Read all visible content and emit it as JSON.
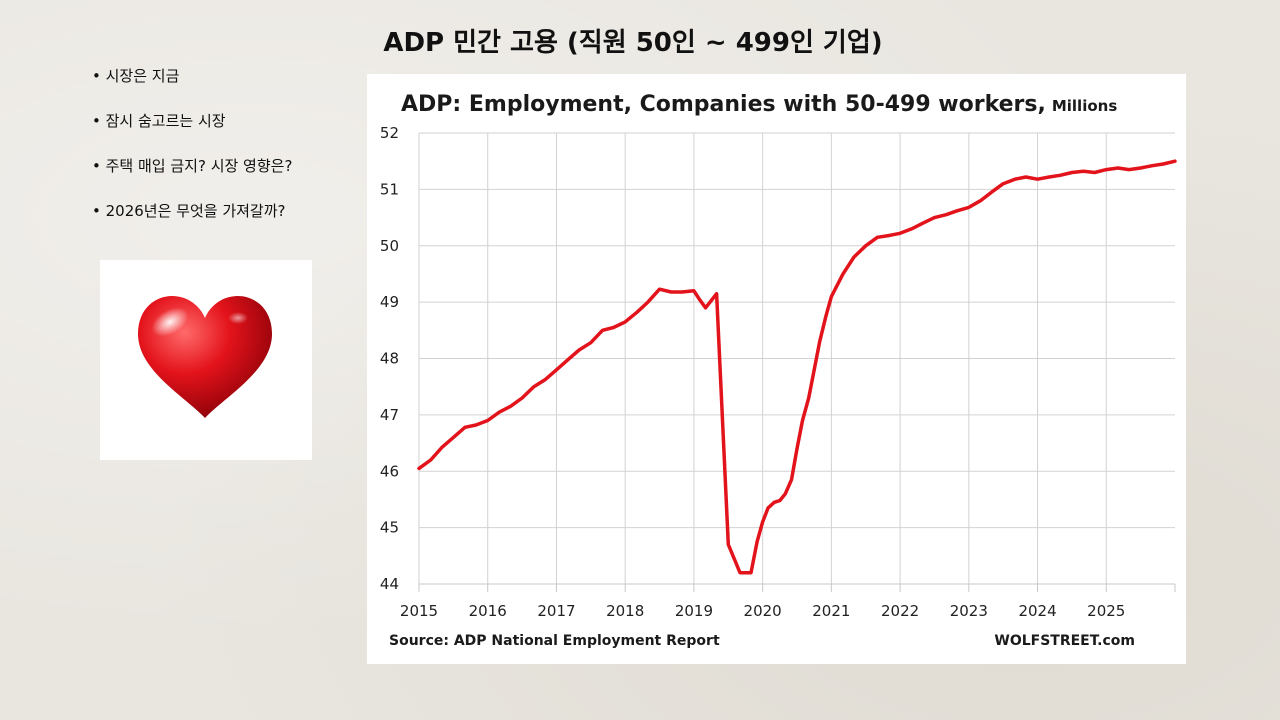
{
  "slide": {
    "title": "ADP 민간 고용 (직원 50인 ~ 499인 기업)",
    "bullets": [
      "시장은 지금",
      "잠시 숨고르는 시장",
      "주택 매입 금지? 시장 영향은?",
      "2026년은 무엇을 가져갈까?"
    ],
    "image": {
      "icon": "heart-icon",
      "color": "#e3131b"
    }
  },
  "chart_data": {
    "type": "line",
    "title": "ADP: Employment, Companies with 50-499 workers,",
    "unit": "Millions",
    "source": "Source: ADP National Employment Report",
    "credit": "WOLFSTREET.com",
    "xlabel": "",
    "ylabel": "",
    "xlim": [
      2015.0,
      2026.0
    ],
    "ylim": [
      44,
      52
    ],
    "yticks": [
      44,
      45,
      46,
      47,
      48,
      49,
      50,
      51,
      52
    ],
    "xticks": [
      2015,
      2016,
      2017,
      2018,
      2019,
      2020,
      2021,
      2022,
      2023,
      2024,
      2025
    ],
    "grid": true,
    "color": "#e3131b",
    "series": [
      {
        "x": [
          2015.0,
          2015.17,
          2015.33,
          2015.5,
          2015.67,
          2015.83,
          2016.0,
          2016.17,
          2016.33,
          2016.5,
          2016.67,
          2016.83,
          2017.0,
          2017.17,
          2017.33,
          2017.5,
          2017.67,
          2017.83,
          2018.0,
          2018.17,
          2018.33,
          2018.5,
          2018.67,
          2018.83,
          2019.0,
          2019.08,
          2019.17,
          2019.33,
          2019.5,
          2019.67,
          2019.83,
          2019.92,
          2020.0,
          2020.08,
          2020.17,
          2020.25,
          2020.33,
          2020.42,
          2020.5,
          2020.58,
          2020.67,
          2020.75,
          2020.83,
          2020.92,
          2021.0,
          2021.17,
          2021.33,
          2021.5,
          2021.67,
          2021.83,
          2022.0,
          2022.17,
          2022.33,
          2022.5,
          2022.67,
          2022.83,
          2023.0,
          2023.17,
          2023.33,
          2023.5,
          2023.67,
          2023.83,
          2024.0,
          2024.17,
          2024.33,
          2024.5,
          2024.67,
          2024.83,
          2025.0,
          2025.17,
          2025.33,
          2025.5,
          2025.67,
          2025.83,
          2026.0
        ],
        "y": [
          46.05,
          46.2,
          46.42,
          46.6,
          46.78,
          46.82,
          46.9,
          47.05,
          47.15,
          47.3,
          47.5,
          47.62,
          47.8,
          47.98,
          48.15,
          48.28,
          48.5,
          48.55,
          48.65,
          48.82,
          49.0,
          49.23,
          49.18,
          49.18,
          49.2,
          49.05,
          48.9,
          49.15,
          44.7,
          44.2,
          44.2,
          44.75,
          45.1,
          45.35,
          45.45,
          45.48,
          45.6,
          45.85,
          46.4,
          46.9,
          47.3,
          47.8,
          48.3,
          48.75,
          49.1,
          49.5,
          49.8,
          50.0,
          50.15,
          50.18,
          50.22,
          50.3,
          50.4,
          50.5,
          50.55,
          50.62,
          50.68,
          50.8,
          50.95,
          51.1,
          51.18,
          51.22,
          51.18,
          51.22,
          51.25,
          51.3,
          51.32,
          51.3,
          51.35,
          51.38,
          51.35,
          51.38,
          51.42,
          51.45,
          51.5
        ]
      }
    ]
  }
}
